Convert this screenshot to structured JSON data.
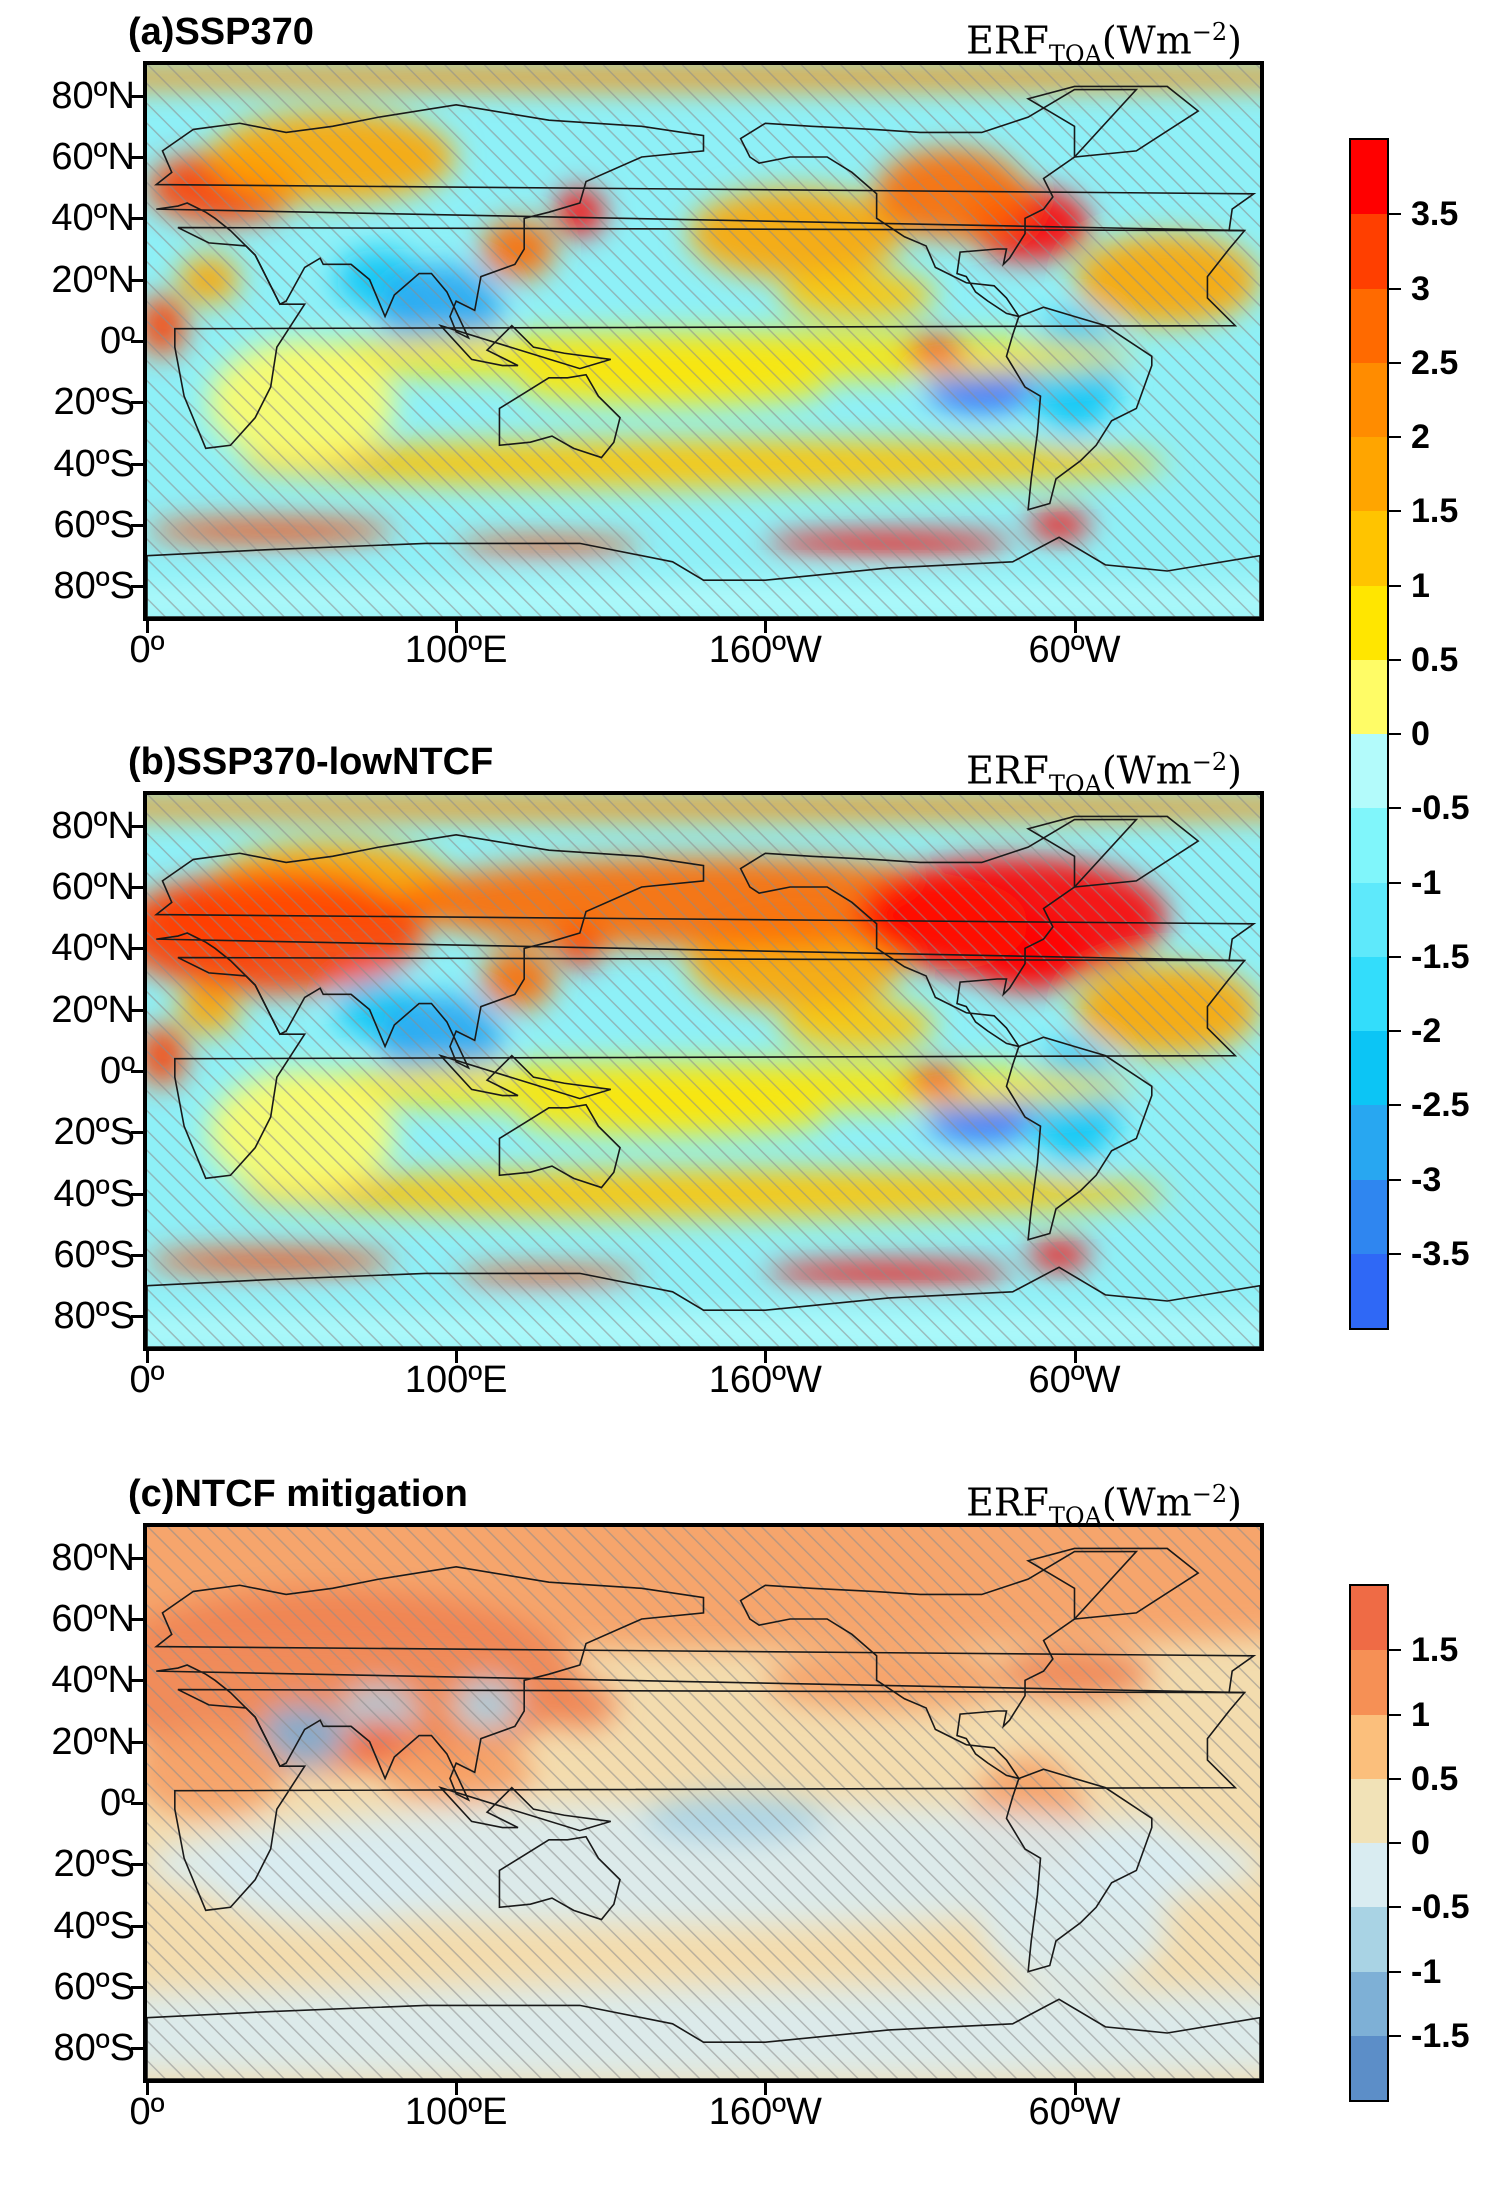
{
  "panels": [
    {
      "title": "(a)SSP370",
      "unit_main": "ERF",
      "unit_sub": "TOA",
      "unit_rest": "(Wm",
      "unit_sup": "−2",
      "unit_close": ")",
      "colorbar": "a"
    },
    {
      "title": "(b)SSP370-lowNTCF",
      "unit_main": "ERF",
      "unit_sub": "TOA",
      "unit_rest": "(Wm",
      "unit_sup": "−2",
      "unit_close": ")",
      "colorbar": "a"
    },
    {
      "title": "(c)NTCF mitigation",
      "unit_main": "ERF",
      "unit_sub": "TOA",
      "unit_rest": "(Wm",
      "unit_sup": "−2",
      "unit_close": ")",
      "colorbar": "c"
    }
  ],
  "axes": {
    "lat_labels": [
      "80ºN",
      "60ºN",
      "40ºN",
      "20ºN",
      "0º",
      "20ºS",
      "40ºS",
      "60ºS",
      "80ºS"
    ],
    "lat_values": [
      80,
      60,
      40,
      20,
      0,
      -20,
      -40,
      -60,
      -80
    ],
    "lon_labels": [
      "0º",
      "100ºE",
      "160ºW",
      "60ºW"
    ],
    "lon_values": [
      0,
      100,
      200,
      300
    ],
    "lat_range": [
      -90,
      90
    ],
    "lon_range": [
      0,
      360
    ]
  },
  "colorbar_a": {
    "labels": [
      "3.5",
      "3",
      "2.5",
      "2",
      "1.5",
      "1",
      "0.5",
      "0",
      "-0.5",
      "-1",
      "-1.5",
      "-2",
      "-2.5",
      "-3",
      "-3.5"
    ],
    "values": [
      3.5,
      3,
      2.5,
      2,
      1.5,
      1,
      0.5,
      0,
      -0.5,
      -1,
      -1.5,
      -2,
      -2.5,
      -3,
      -3.5
    ],
    "range": [
      -4,
      4
    ],
    "colors": [
      "#ff0000",
      "#ff3f00",
      "#ff6a00",
      "#ff8c00",
      "#ffa500",
      "#ffc400",
      "#ffe600",
      "#fffc66",
      "#b3fbfb",
      "#80f6fb",
      "#5ee9fb",
      "#33ddfb",
      "#0cc5f5",
      "#28a7f1",
      "#2f86f0",
      "#2f68f6"
    ]
  },
  "colorbar_c": {
    "labels": [
      "1.5",
      "1",
      "0.5",
      "0",
      "-0.5",
      "-1",
      "-1.5"
    ],
    "values": [
      1.5,
      1,
      0.5,
      0,
      -0.5,
      -1,
      -1.5
    ],
    "range": [
      -2,
      2
    ],
    "colors": [
      "#ef6b45",
      "#f69055",
      "#fbbf7c",
      "#f1e2b7",
      "#d9ecf1",
      "#a9d3e4",
      "#7eb0d6",
      "#5c8ec8"
    ]
  },
  "hatching": "grey diagonal stipple over non-significant areas"
}
